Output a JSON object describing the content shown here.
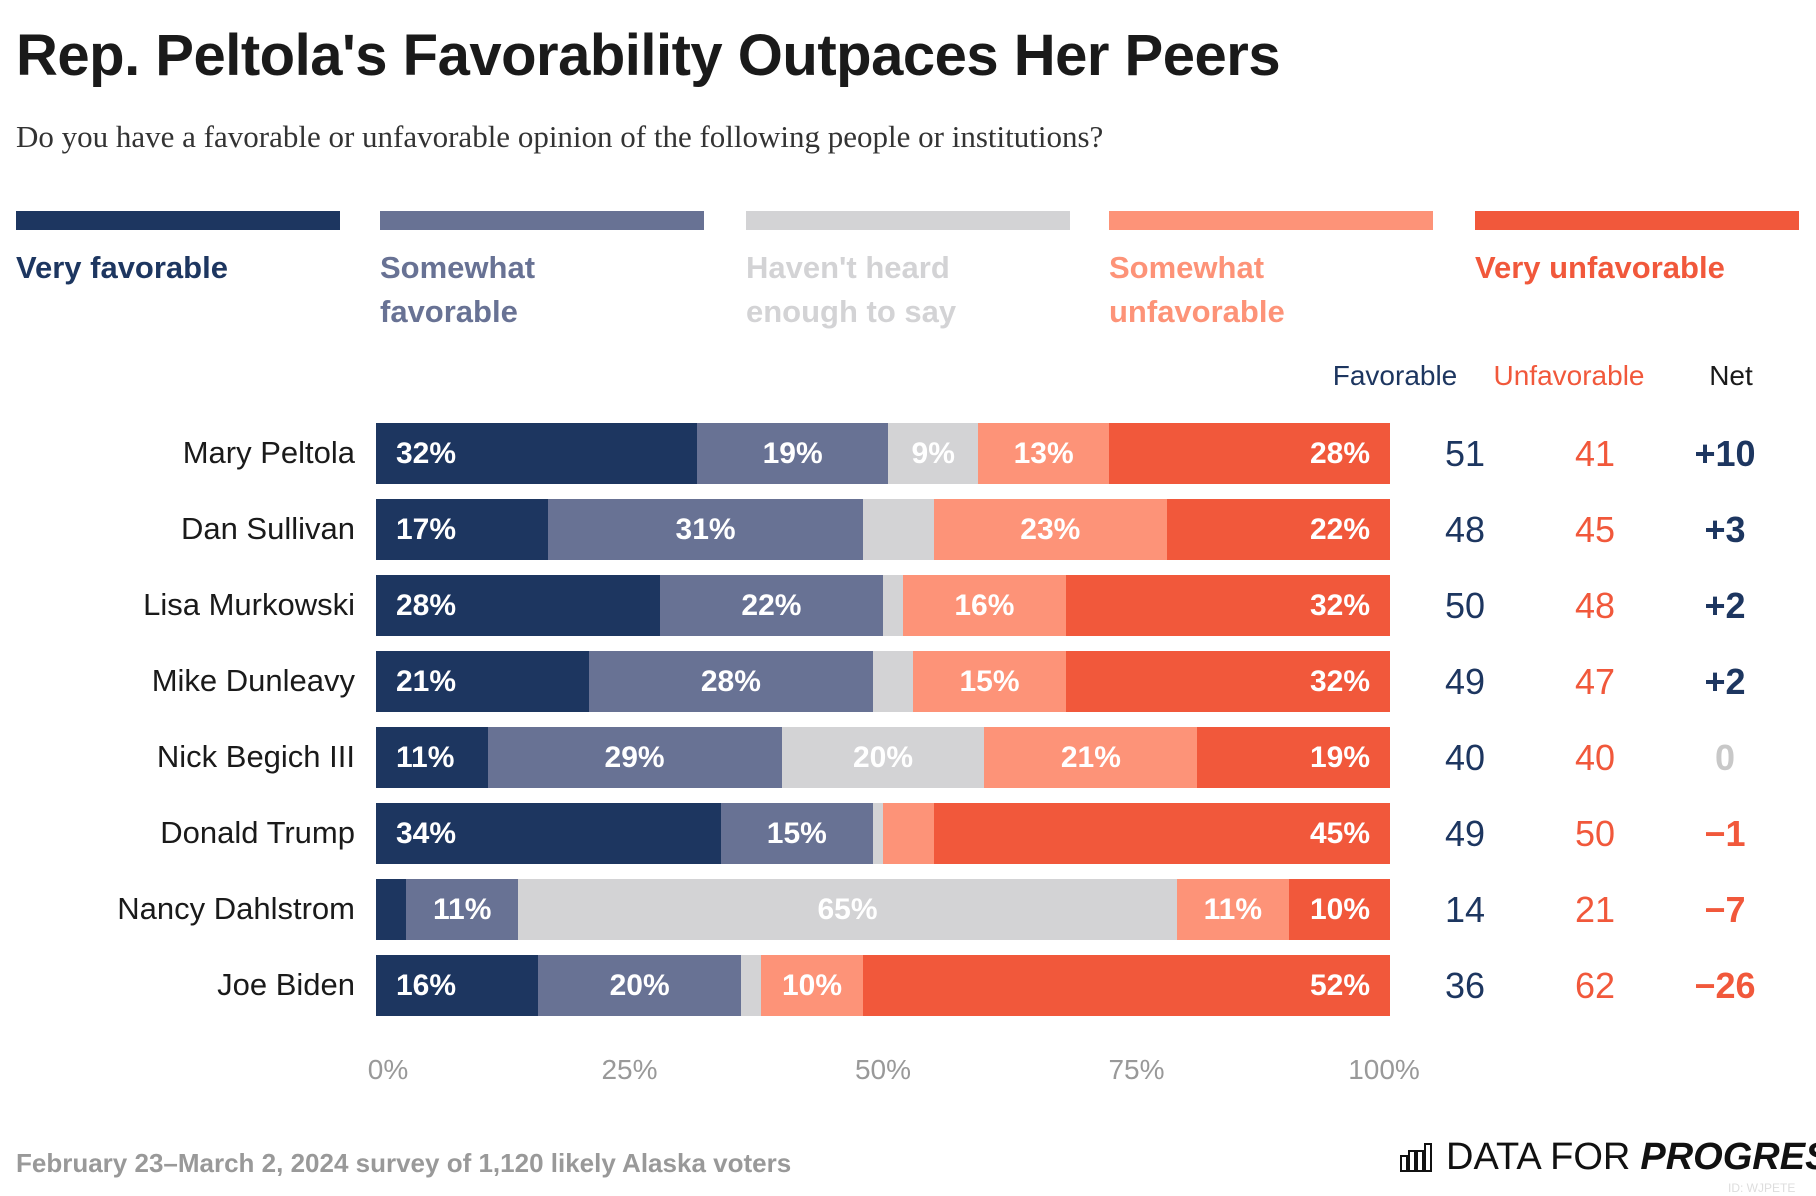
{
  "title": "Rep. Peltola's Favorability Outpaces Her Peers",
  "subtitle": "Do you have a favorable or unfavorable opinion of the following people or institutions?",
  "footer": "February 23–March 2, 2024 survey of 1,120 likely Alaska voters",
  "logo": {
    "text_a": "DATA FOR",
    "text_b": "PROGRESS",
    "icon": "bar-chart-icon"
  },
  "id_text": "ID: WJPETE",
  "colors": {
    "very_fav": "#1d3660",
    "somewhat_fav": "#687294",
    "not_heard": "#d3d3d5",
    "somewhat_unfav": "#fd9378",
    "very_unfav": "#f1583b",
    "net_zero": "#c8c8c8"
  },
  "chart_data": {
    "type": "bar",
    "orientation": "horizontal-stacked-100",
    "xlim": [
      0,
      100
    ],
    "ticks": [
      "0%",
      "25%",
      "50%",
      "75%",
      "100%"
    ],
    "legend": [
      "Very favorable",
      "Somewhat favorable",
      "Haven't heard enough to say",
      "Somewhat unfavorable",
      "Very unfavorable"
    ],
    "legend_placement": "top",
    "column_headers": {
      "fav": "Favorable",
      "unfav": "Unfavorable",
      "net": "Net"
    },
    "categories": [
      "Mary Peltola",
      "Dan Sullivan",
      "Lisa Murkowski",
      "Mike Dunleavy",
      "Nick Begich III",
      "Donald Trump",
      "Nancy Dahlstrom",
      "Joe Biden"
    ],
    "series": [
      {
        "name": "Very favorable",
        "values": [
          32,
          17,
          28,
          21,
          11,
          34,
          3,
          16
        ],
        "labels": [
          "32%",
          "17%",
          "28%",
          "21%",
          "11%",
          "34%",
          "",
          "16%"
        ]
      },
      {
        "name": "Somewhat favorable",
        "values": [
          19,
          31,
          22,
          28,
          29,
          15,
          11,
          20
        ],
        "labels": [
          "19%",
          "31%",
          "22%",
          "28%",
          "29%",
          "15%",
          "11%",
          "20%"
        ]
      },
      {
        "name": "Haven't heard enough to say",
        "values": [
          9,
          7,
          2,
          4,
          20,
          1,
          65,
          2
        ],
        "labels": [
          "9%",
          "",
          "",
          "",
          "20%",
          "",
          "65%",
          ""
        ]
      },
      {
        "name": "Somewhat unfavorable",
        "values": [
          13,
          23,
          16,
          15,
          21,
          5,
          11,
          10
        ],
        "labels": [
          "13%",
          "23%",
          "16%",
          "15%",
          "21%",
          "",
          "11%",
          "10%"
        ]
      },
      {
        "name": "Very unfavorable",
        "values": [
          28,
          22,
          32,
          32,
          19,
          45,
          10,
          52
        ],
        "labels": [
          "28%",
          "22%",
          "32%",
          "32%",
          "19%",
          "45%",
          "10%",
          "52%"
        ]
      }
    ],
    "favorable": [
      "51",
      "48",
      "50",
      "49",
      "40",
      "49",
      "14",
      "36"
    ],
    "unfavorable": [
      "41",
      "45",
      "48",
      "47",
      "40",
      "50",
      "21",
      "62"
    ],
    "net": [
      "+10",
      "+3",
      "+2",
      "+2",
      "0",
      "−1",
      "−7",
      "−26"
    ]
  }
}
